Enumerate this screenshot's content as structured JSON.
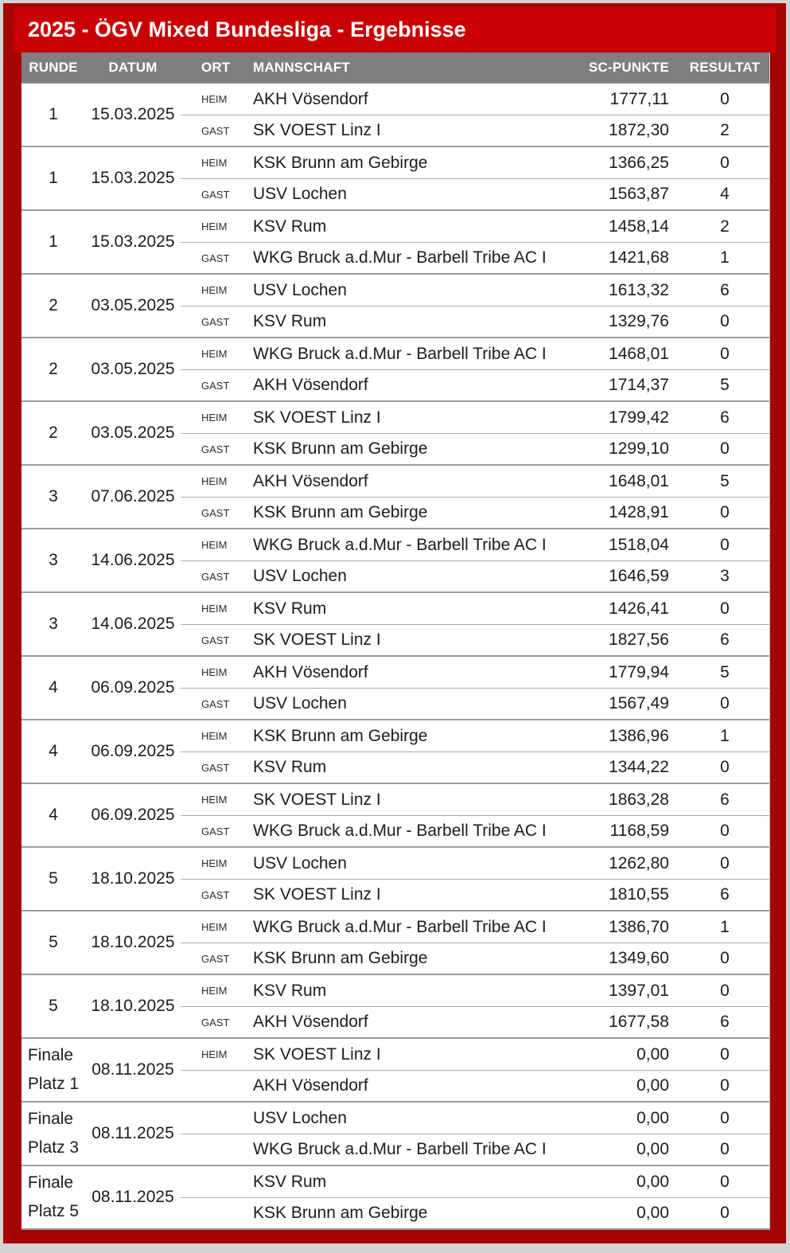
{
  "title": "2025 - ÖGV Mixed Bundesliga - Ergebnisse",
  "columns": {
    "runde": "RUNDE",
    "datum": "DATUM",
    "ort": "ORT",
    "mannschaft": "MANNSCHAFT",
    "sc_punkte": "SC-PUNKTE",
    "resultat": "RESULTAT"
  },
  "colors": {
    "page_bg": "#D4D4D4",
    "frame_red": "#A40404",
    "banner_red": "#C80202",
    "header_gray": "#7F7F7F",
    "header_text": "#FFFFFF",
    "row_bg": "#FFFFFF",
    "body_text": "#1C1C1C",
    "group_border": "#9C9C9C",
    "row_divider": "#ACACAC"
  },
  "matches": [
    {
      "round": [
        "1"
      ],
      "date": "15.03.2025",
      "rows": [
        {
          "ort": "HEIM",
          "team": "AKH Vösendorf",
          "points": "1777,11",
          "result": "0"
        },
        {
          "ort": "GAST",
          "team": "SK VOEST Linz I",
          "points": "1872,30",
          "result": "2"
        }
      ]
    },
    {
      "round": [
        "1"
      ],
      "date": "15.03.2025",
      "rows": [
        {
          "ort": "HEIM",
          "team": "KSK Brunn am Gebirge",
          "points": "1366,25",
          "result": "0"
        },
        {
          "ort": "GAST",
          "team": "USV Lochen",
          "points": "1563,87",
          "result": "4"
        }
      ]
    },
    {
      "round": [
        "1"
      ],
      "date": "15.03.2025",
      "rows": [
        {
          "ort": "HEIM",
          "team": "KSV Rum",
          "points": "1458,14",
          "result": "2"
        },
        {
          "ort": "GAST",
          "team": "WKG Bruck a.d.Mur - Barbell Tribe AC I",
          "points": "1421,68",
          "result": "1"
        }
      ]
    },
    {
      "round": [
        "2"
      ],
      "date": "03.05.2025",
      "rows": [
        {
          "ort": "HEIM",
          "team": "USV Lochen",
          "points": "1613,32",
          "result": "6"
        },
        {
          "ort": "GAST",
          "team": "KSV Rum",
          "points": "1329,76",
          "result": "0"
        }
      ]
    },
    {
      "round": [
        "2"
      ],
      "date": "03.05.2025",
      "rows": [
        {
          "ort": "HEIM",
          "team": "WKG Bruck a.d.Mur - Barbell Tribe AC I",
          "points": "1468,01",
          "result": "0"
        },
        {
          "ort": "GAST",
          "team": "AKH Vösendorf",
          "points": "1714,37",
          "result": "5"
        }
      ]
    },
    {
      "round": [
        "2"
      ],
      "date": "03.05.2025",
      "rows": [
        {
          "ort": "HEIM",
          "team": "SK VOEST Linz I",
          "points": "1799,42",
          "result": "6"
        },
        {
          "ort": "GAST",
          "team": "KSK Brunn am Gebirge",
          "points": "1299,10",
          "result": "0"
        }
      ]
    },
    {
      "round": [
        "3"
      ],
      "date": "07.06.2025",
      "rows": [
        {
          "ort": "HEIM",
          "team": "AKH Vösendorf",
          "points": "1648,01",
          "result": "5"
        },
        {
          "ort": "GAST",
          "team": "KSK Brunn am Gebirge",
          "points": "1428,91",
          "result": "0"
        }
      ]
    },
    {
      "round": [
        "3"
      ],
      "date": "14.06.2025",
      "rows": [
        {
          "ort": "HEIM",
          "team": "WKG Bruck a.d.Mur - Barbell Tribe AC I",
          "points": "1518,04",
          "result": "0"
        },
        {
          "ort": "GAST",
          "team": "USV Lochen",
          "points": "1646,59",
          "result": "3"
        }
      ]
    },
    {
      "round": [
        "3"
      ],
      "date": "14.06.2025",
      "rows": [
        {
          "ort": "HEIM",
          "team": "KSV Rum",
          "points": "1426,41",
          "result": "0"
        },
        {
          "ort": "GAST",
          "team": "SK VOEST Linz I",
          "points": "1827,56",
          "result": "6"
        }
      ]
    },
    {
      "round": [
        "4"
      ],
      "date": "06.09.2025",
      "rows": [
        {
          "ort": "HEIM",
          "team": "AKH Vösendorf",
          "points": "1779,94",
          "result": "5"
        },
        {
          "ort": "GAST",
          "team": "USV Lochen",
          "points": "1567,49",
          "result": "0"
        }
      ]
    },
    {
      "round": [
        "4"
      ],
      "date": "06.09.2025",
      "rows": [
        {
          "ort": "HEIM",
          "team": "KSK Brunn am Gebirge",
          "points": "1386,96",
          "result": "1"
        },
        {
          "ort": "GAST",
          "team": "KSV Rum",
          "points": "1344,22",
          "result": "0"
        }
      ]
    },
    {
      "round": [
        "4"
      ],
      "date": "06.09.2025",
      "rows": [
        {
          "ort": "HEIM",
          "team": "SK VOEST Linz I",
          "points": "1863,28",
          "result": "6"
        },
        {
          "ort": "GAST",
          "team": "WKG Bruck a.d.Mur - Barbell Tribe AC I",
          "points": "1168,59",
          "result": "0"
        }
      ]
    },
    {
      "round": [
        "5"
      ],
      "date": "18.10.2025",
      "rows": [
        {
          "ort": "HEIM",
          "team": "USV Lochen",
          "points": "1262,80",
          "result": "0"
        },
        {
          "ort": "GAST",
          "team": "SK VOEST Linz I",
          "points": "1810,55",
          "result": "6"
        }
      ]
    },
    {
      "round": [
        "5"
      ],
      "date": "18.10.2025",
      "rows": [
        {
          "ort": "HEIM",
          "team": "WKG Bruck a.d.Mur - Barbell Tribe AC I",
          "points": "1386,70",
          "result": "1"
        },
        {
          "ort": "GAST",
          "team": "KSK Brunn am Gebirge",
          "points": "1349,60",
          "result": "0"
        }
      ]
    },
    {
      "round": [
        "5"
      ],
      "date": "18.10.2025",
      "rows": [
        {
          "ort": "HEIM",
          "team": "KSV Rum",
          "points": "1397,01",
          "result": "0"
        },
        {
          "ort": "GAST",
          "team": "AKH Vösendorf",
          "points": "1677,58",
          "result": "6"
        }
      ]
    },
    {
      "round": [
        "Finale",
        "Platz 1"
      ],
      "date": "08.11.2025",
      "rows": [
        {
          "ort": "HEIM",
          "team": "SK VOEST Linz I",
          "points": "0,00",
          "result": "0"
        },
        {
          "ort": "",
          "team": "AKH Vösendorf",
          "points": "0,00",
          "result": "0"
        }
      ]
    },
    {
      "round": [
        "Finale",
        "Platz 3"
      ],
      "date": "08.11.2025",
      "rows": [
        {
          "ort": "",
          "team": "USV Lochen",
          "points": "0,00",
          "result": "0"
        },
        {
          "ort": "",
          "team": "WKG Bruck a.d.Mur - Barbell Tribe AC I",
          "points": "0,00",
          "result": "0"
        }
      ]
    },
    {
      "round": [
        "Finale",
        "Platz 5"
      ],
      "date": "08.11.2025",
      "rows": [
        {
          "ort": "",
          "team": "KSV Rum",
          "points": "0,00",
          "result": "0"
        },
        {
          "ort": "",
          "team": "KSK Brunn am Gebirge",
          "points": "0,00",
          "result": "0"
        }
      ]
    }
  ]
}
